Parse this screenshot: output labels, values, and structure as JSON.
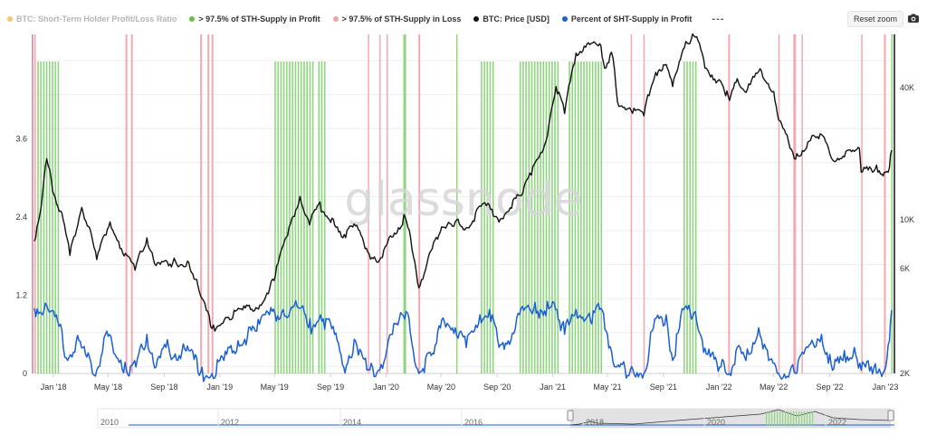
{
  "legend": {
    "items": [
      {
        "label": "BTC: Short-Term Holder Profit/Loss Ratio",
        "color": "#f2c47a",
        "hidden": true
      },
      {
        "label": "> 97.5% of STH-Supply in Profit",
        "color": "#67c23a",
        "hidden": false
      },
      {
        "label": "> 97.5% of STH-Supply in Loss",
        "color": "#f0a0a8",
        "hidden": false
      },
      {
        "label": "BTC: Price [USD]",
        "color": "#111111",
        "hidden": false
      },
      {
        "label": "Percent of SHT-Supply in Profit",
        "color": "#1a5fd6",
        "hidden": false
      }
    ],
    "more": "---"
  },
  "toolbar": {
    "reset_zoom": "Reset zoom"
  },
  "watermark": "glassnode",
  "navigator": {
    "labels": [
      "2010",
      "2012",
      "2014",
      "2016",
      "2018",
      "2020",
      "2022"
    ]
  },
  "colors": {
    "profit_band": "#8fd680",
    "loss_band": "#f3a9b1",
    "price": "#111111",
    "percent": "#1a5fd6"
  },
  "chart_data": {
    "type": "line",
    "x_axis_labels": [
      "Jan '18",
      "May '18",
      "Sep '18",
      "Jan '19",
      "May '19",
      "Sep '19",
      "Jan '20",
      "May '20",
      "Sep '20",
      "Jan '21",
      "May '21",
      "Sep '21",
      "Jan '22",
      "May '22",
      "Sep '22",
      "Jan '23"
    ],
    "left_axis": {
      "ticks": [
        "0",
        "1.2",
        "2.4",
        "3.6"
      ],
      "ylim": [
        0,
        5.2
      ]
    },
    "right_axis": {
      "scale": "log",
      "ticks": [
        "2K",
        "6K",
        "10K",
        "40K"
      ],
      "ylim": [
        2000,
        70000
      ]
    },
    "x_range": [
      "2017-11-20",
      "2023-01-15"
    ],
    "series": [
      {
        "name": "BTC: Price [USD]",
        "axis": "right",
        "points": [
          [
            "2017-11-20",
            8000
          ],
          [
            "2017-12-05",
            11500
          ],
          [
            "2017-12-17",
            19000
          ],
          [
            "2017-12-30",
            13500
          ],
          [
            "2018-01-16",
            11000
          ],
          [
            "2018-02-06",
            6900
          ],
          [
            "2018-03-04",
            11400
          ],
          [
            "2018-04-06",
            6600
          ],
          [
            "2018-05-05",
            9800
          ],
          [
            "2018-05-30",
            7400
          ],
          [
            "2018-06-29",
            5900
          ],
          [
            "2018-07-25",
            8300
          ],
          [
            "2018-08-14",
            6200
          ],
          [
            "2018-09-20",
            6400
          ],
          [
            "2018-10-25",
            6400
          ],
          [
            "2018-11-20",
            4500
          ],
          [
            "2018-12-15",
            3200
          ],
          [
            "2019-01-20",
            3600
          ],
          [
            "2019-02-20",
            3900
          ],
          [
            "2019-03-30",
            4100
          ],
          [
            "2019-04-30",
            5300
          ],
          [
            "2019-05-30",
            8500
          ],
          [
            "2019-06-26",
            12800
          ],
          [
            "2019-07-17",
            9500
          ],
          [
            "2019-08-06",
            11800
          ],
          [
            "2019-09-25",
            8400
          ],
          [
            "2019-10-26",
            9400
          ],
          [
            "2019-11-25",
            7000
          ],
          [
            "2019-12-18",
            6600
          ],
          [
            "2020-02-12",
            10300
          ],
          [
            "2020-03-13",
            4900
          ],
          [
            "2020-04-29",
            8800
          ],
          [
            "2020-06-01",
            9800
          ],
          [
            "2020-07-01",
            9200
          ],
          [
            "2020-08-02",
            11900
          ],
          [
            "2020-09-08",
            10100
          ],
          [
            "2020-10-21",
            12900
          ],
          [
            "2020-11-15",
            16000
          ],
          [
            "2020-12-17",
            22800
          ],
          [
            "2021-01-08",
            40500
          ],
          [
            "2021-01-27",
            30500
          ],
          [
            "2021-02-21",
            57500
          ],
          [
            "2021-03-14",
            61200
          ],
          [
            "2021-04-14",
            63500
          ],
          [
            "2021-04-25",
            49000
          ],
          [
            "2021-05-10",
            58000
          ],
          [
            "2021-05-23",
            34500
          ],
          [
            "2021-06-22",
            31500
          ],
          [
            "2021-07-20",
            29800
          ],
          [
            "2021-08-15",
            47000
          ],
          [
            "2021-09-07",
            51000
          ],
          [
            "2021-09-21",
            40500
          ],
          [
            "2021-10-20",
            65000
          ],
          [
            "2021-11-10",
            68000
          ],
          [
            "2021-12-04",
            49000
          ],
          [
            "2022-01-10",
            40500
          ],
          [
            "2022-01-24",
            35000
          ],
          [
            "2022-02-10",
            44000
          ],
          [
            "2022-03-01",
            38000
          ],
          [
            "2022-03-29",
            47500
          ],
          [
            "2022-05-01",
            38500
          ],
          [
            "2022-05-12",
            28500
          ],
          [
            "2022-06-18",
            18900
          ],
          [
            "2022-07-30",
            24000
          ],
          [
            "2022-08-14",
            24500
          ],
          [
            "2022-09-07",
            18800
          ],
          [
            "2022-09-30",
            19500
          ],
          [
            "2022-10-25",
            20500
          ],
          [
            "2022-11-05",
            21200
          ],
          [
            "2022-11-09",
            16500
          ],
          [
            "2022-12-10",
            17100
          ],
          [
            "2022-12-30",
            16500
          ],
          [
            "2023-01-10",
            17300
          ],
          [
            "2023-01-15",
            20800
          ]
        ]
      },
      {
        "name": "Percent of SHT-Supply in Profit",
        "axis": "left",
        "points": [
          [
            "2017-11-20",
            1.0
          ],
          [
            "2017-12-20",
            0.98
          ],
          [
            "2018-01-10",
            0.8
          ],
          [
            "2018-02-01",
            0.2
          ],
          [
            "2018-02-20",
            0.5
          ],
          [
            "2018-03-15",
            0.25
          ],
          [
            "2018-04-06",
            0.05
          ],
          [
            "2018-04-25",
            0.6
          ],
          [
            "2018-05-10",
            0.45
          ],
          [
            "2018-06-10",
            0.05
          ],
          [
            "2018-07-01",
            0.1
          ],
          [
            "2018-07-25",
            0.6
          ],
          [
            "2018-08-14",
            0.1
          ],
          [
            "2018-09-05",
            0.4
          ],
          [
            "2018-09-25",
            0.3
          ],
          [
            "2018-10-25",
            0.35
          ],
          [
            "2018-11-20",
            0.02
          ],
          [
            "2018-12-15",
            0.0
          ],
          [
            "2019-01-10",
            0.2
          ],
          [
            "2019-02-10",
            0.5
          ],
          [
            "2019-03-20",
            0.65
          ],
          [
            "2019-04-20",
            0.9
          ],
          [
            "2019-05-20",
            0.98
          ],
          [
            "2019-06-26",
            1.0
          ],
          [
            "2019-07-15",
            0.7
          ],
          [
            "2019-08-10",
            0.9
          ],
          [
            "2019-09-10",
            0.6
          ],
          [
            "2019-09-30",
            0.1
          ],
          [
            "2019-10-26",
            0.5
          ],
          [
            "2019-11-20",
            0.05
          ],
          [
            "2019-12-15",
            0.05
          ],
          [
            "2020-01-15",
            0.6
          ],
          [
            "2020-02-14",
            0.95
          ],
          [
            "2020-03-13",
            0.0
          ],
          [
            "2020-04-15",
            0.3
          ],
          [
            "2020-05-05",
            0.85
          ],
          [
            "2020-06-01",
            0.7
          ],
          [
            "2020-06-25",
            0.4
          ],
          [
            "2020-07-25",
            0.9
          ],
          [
            "2020-08-15",
            0.98
          ],
          [
            "2020-09-05",
            0.4
          ],
          [
            "2020-09-25",
            0.5
          ],
          [
            "2020-10-20",
            0.9
          ],
          [
            "2020-11-20",
            0.98
          ],
          [
            "2021-01-10",
            0.98
          ],
          [
            "2021-01-27",
            0.6
          ],
          [
            "2021-02-21",
            0.98
          ],
          [
            "2021-03-25",
            0.8
          ],
          [
            "2021-04-14",
            0.98
          ],
          [
            "2021-05-01",
            0.6
          ],
          [
            "2021-05-19",
            0.1
          ],
          [
            "2021-06-20",
            0.05
          ],
          [
            "2021-07-20",
            0.0
          ],
          [
            "2021-08-10",
            0.7
          ],
          [
            "2021-09-07",
            0.9
          ],
          [
            "2021-09-21",
            0.2
          ],
          [
            "2021-10-15",
            0.98
          ],
          [
            "2021-11-10",
            0.95
          ],
          [
            "2021-12-04",
            0.3
          ],
          [
            "2022-01-05",
            0.1
          ],
          [
            "2022-01-24",
            0.0
          ],
          [
            "2022-02-10",
            0.4
          ],
          [
            "2022-03-01",
            0.2
          ],
          [
            "2022-03-29",
            0.7
          ],
          [
            "2022-04-20",
            0.2
          ],
          [
            "2022-05-12",
            0.0
          ],
          [
            "2022-06-18",
            0.0
          ],
          [
            "2022-07-15",
            0.4
          ],
          [
            "2022-08-14",
            0.6
          ],
          [
            "2022-09-07",
            0.05
          ],
          [
            "2022-09-30",
            0.2
          ],
          [
            "2022-10-25",
            0.4
          ],
          [
            "2022-11-09",
            0.05
          ],
          [
            "2022-12-10",
            0.15
          ],
          [
            "2022-12-30",
            0.05
          ],
          [
            "2023-01-10",
            0.5
          ],
          [
            "2023-01-15",
            0.97
          ]
        ]
      },
      {
        "name": "> 97.5% of STH-Supply in Profit",
        "type": "bands",
        "ranges": [
          [
            "2017-11-20",
            "2018-01-10"
          ],
          [
            "2019-05-01",
            "2019-07-25"
          ],
          [
            "2019-08-05",
            "2019-08-20"
          ],
          [
            "2020-02-08",
            "2020-02-14"
          ],
          [
            "2020-06-03",
            "2020-06-05"
          ],
          [
            "2020-07-27",
            "2020-08-25"
          ],
          [
            "2020-10-20",
            "2021-01-12"
          ],
          [
            "2021-02-05",
            "2021-04-20"
          ],
          [
            "2021-10-15",
            "2021-11-12"
          ],
          [
            "2023-01-14",
            "2023-01-15"
          ]
        ]
      },
      {
        "name": "> 97.5% of STH-Supply in Loss",
        "type": "bands",
        "ranges": [
          [
            "2017-11-20",
            "2017-11-22"
          ],
          [
            "2018-06-08",
            "2018-06-12"
          ],
          [
            "2018-06-20",
            "2018-06-24"
          ],
          [
            "2018-11-19",
            "2018-11-23"
          ],
          [
            "2018-12-05",
            "2018-12-09"
          ],
          [
            "2018-12-14",
            "2018-12-18"
          ],
          [
            "2019-11-22",
            "2019-11-25"
          ],
          [
            "2019-12-17",
            "2019-12-20"
          ],
          [
            "2020-01-02",
            "2020-01-05"
          ],
          [
            "2020-03-12",
            "2020-03-16"
          ],
          [
            "2021-06-21",
            "2021-06-24"
          ],
          [
            "2021-07-19",
            "2021-07-22"
          ],
          [
            "2022-01-21",
            "2022-01-25"
          ],
          [
            "2022-05-11",
            "2022-05-14"
          ],
          [
            "2022-06-13",
            "2022-06-19"
          ],
          [
            "2022-07-01",
            "2022-07-03"
          ],
          [
            "2022-11-09",
            "2022-11-12"
          ],
          [
            "2022-12-29",
            "2023-01-02"
          ]
        ]
      }
    ]
  }
}
